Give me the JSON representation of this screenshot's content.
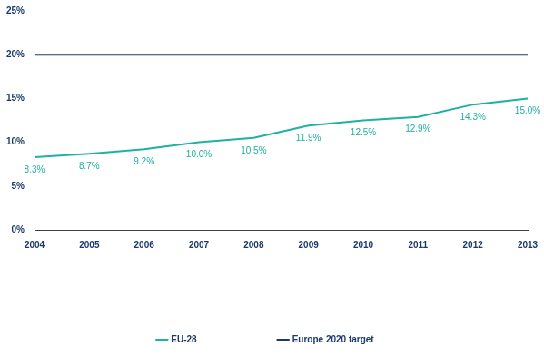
{
  "chart_data": {
    "type": "line",
    "categories": [
      "2004",
      "2005",
      "2006",
      "2007",
      "2008",
      "2009",
      "2010",
      "2011",
      "2012",
      "2013"
    ],
    "series": [
      {
        "name": "EU-28",
        "color": "#1fb0a3",
        "values": [
          8.3,
          8.7,
          9.2,
          10.0,
          10.5,
          11.9,
          12.5,
          12.9,
          14.3,
          15.0
        ],
        "value_labels": [
          "8.3%",
          "8.7%",
          "9.2%",
          "10.0%",
          "10.5%",
          "11.9%",
          "12.5%",
          "12.9%",
          "14.3%",
          "15.0%"
        ]
      },
      {
        "name": "Europe 2020 target",
        "color": "#1b3a6b",
        "values": [
          20,
          20,
          20,
          20,
          20,
          20,
          20,
          20,
          20,
          20
        ]
      }
    ],
    "ylim": [
      0,
      25
    ],
    "yticks": [
      {
        "value": 0,
        "label": "0%"
      },
      {
        "value": 5,
        "label": "5%"
      },
      {
        "value": 10,
        "label": "10%"
      },
      {
        "value": 15,
        "label": "15%"
      },
      {
        "value": 20,
        "label": "20%"
      },
      {
        "value": 25,
        "label": "25%"
      }
    ],
    "grid": false,
    "legend": "bottom",
    "data_labels": true
  }
}
